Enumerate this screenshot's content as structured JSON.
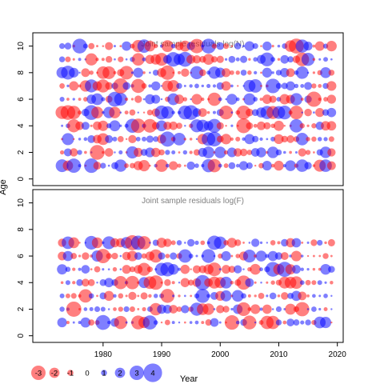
{
  "chart_data": [
    {
      "type": "scatter",
      "subtype": "bubble-residuals",
      "title": "Joint sample residuals log(N)",
      "xlabel": "",
      "ylabel": "Age",
      "xlim": [
        1968,
        2021
      ],
      "ylim": [
        -0.5,
        11
      ],
      "yticks": [
        0,
        2,
        4,
        6,
        8,
        10
      ],
      "ages": [
        1,
        2,
        3,
        4,
        5,
        6,
        7,
        8,
        9,
        10
      ],
      "years": [
        1973,
        2019
      ],
      "grid": false
    },
    {
      "type": "scatter",
      "subtype": "bubble-residuals",
      "title": "Joint sample residuals log(F)",
      "xlabel": "Year",
      "ylabel": "",
      "xlim": [
        1968,
        2021
      ],
      "ylim": [
        -0.5,
        11
      ],
      "xticks": [
        1980,
        1990,
        2000,
        2010,
        2020
      ],
      "yticks": [
        0,
        2,
        4,
        6,
        8,
        10
      ],
      "ages": [
        1,
        2,
        3,
        4,
        5,
        6,
        7
      ],
      "years": [
        1973,
        2019
      ],
      "grid": false
    }
  ],
  "legend": {
    "labels": [
      "-3",
      "-2",
      "-1",
      "0",
      "1",
      "2",
      "3",
      "4"
    ],
    "values": [
      -3,
      -2,
      -1,
      0,
      1,
      2,
      3,
      4
    ],
    "position": "bottom-left"
  },
  "colors": {
    "negative": "#ff0000",
    "positive": "#0000ff",
    "opacity": 0.5
  }
}
